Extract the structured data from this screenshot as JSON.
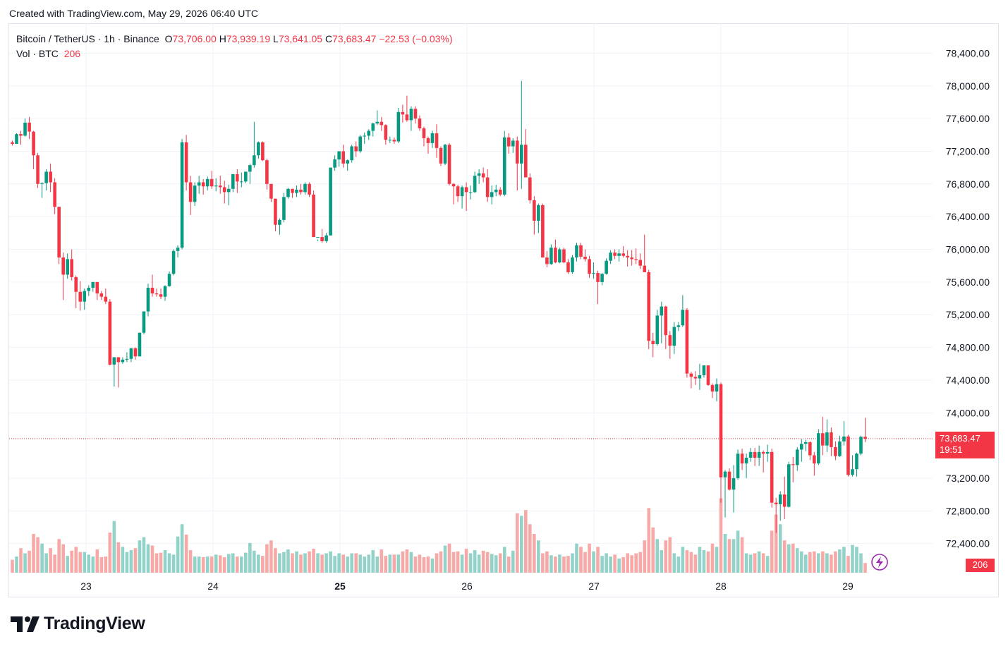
{
  "header": {
    "created": "Created with TradingView.com, May 29, 2026 06:40 UTC"
  },
  "legend": {
    "symbol": "Bitcoin / TetherUS · 1h · Binance",
    "o_label": "O",
    "o_value": "73,706.00",
    "h_label": "H",
    "h_value": "73,939.19",
    "l_label": "L",
    "l_value": "73,641.05",
    "c_label": "C",
    "c_value": "73,683.47",
    "change": "−22.53 (−0.03%)",
    "vol_label": "Vol · BTC",
    "vol_value": "206"
  },
  "price_tag": {
    "price": "73,683.47",
    "countdown": "19:51"
  },
  "vol_tag": "206",
  "brand": "TradingView",
  "colors": {
    "up": "#089981",
    "down": "#f23645",
    "up_vol": "#92d2c9",
    "down_vol": "#f7a9a7",
    "grid": "#f0f3fa"
  },
  "chart_data": {
    "type": "candlestick",
    "interval": "1h",
    "ylim": [
      72000,
      78600
    ],
    "y_ticks": [
      "78,400.00",
      "78,000.00",
      "77,600.00",
      "77,200.00",
      "76,800.00",
      "76,400.00",
      "76,000.00",
      "75,600.00",
      "75,200.00",
      "74,800.00",
      "74,400.00",
      "74,000.00",
      "73,200.00",
      "72,800.00",
      "72,400.00"
    ],
    "x_ticks": [
      "23",
      "24",
      "25",
      "26",
      "27",
      "28",
      "29"
    ],
    "last_price": 73683.47,
    "candles": [
      [
        77310,
        77330,
        77270,
        77290,
        20
      ],
      [
        77290,
        77420,
        77290,
        77410,
        25
      ],
      [
        77410,
        77450,
        77280,
        77390,
        38
      ],
      [
        77390,
        77600,
        77380,
        77550,
        30
      ],
      [
        77550,
        77620,
        77350,
        77440,
        34
      ],
      [
        77440,
        77450,
        76980,
        77150,
        60
      ],
      [
        77150,
        77180,
        76750,
        76800,
        55
      ],
      [
        76800,
        76820,
        76630,
        76810,
        45
      ],
      [
        76810,
        76980,
        76720,
        76950,
        30
      ],
      [
        76950,
        77050,
        76700,
        76820,
        38
      ],
      [
        76820,
        76870,
        76430,
        76520,
        28
      ],
      [
        76520,
        76520,
        75820,
        75900,
        52
      ],
      [
        75900,
        75960,
        75380,
        75690,
        44
      ],
      [
        75690,
        75950,
        75640,
        75880,
        26
      ],
      [
        75880,
        76000,
        75620,
        75660,
        34
      ],
      [
        75660,
        75680,
        75280,
        75480,
        40
      ],
      [
        75480,
        75610,
        75250,
        75360,
        32
      ],
      [
        75360,
        75520,
        75260,
        75490,
        32
      ],
      [
        75490,
        75560,
        75430,
        75530,
        28
      ],
      [
        75530,
        75600,
        75480,
        75600,
        25
      ],
      [
        75600,
        75600,
        75380,
        75460,
        36
      ],
      [
        75460,
        75490,
        75380,
        75420,
        24
      ],
      [
        75420,
        75520,
        75330,
        75360,
        25
      ],
      [
        75360,
        75390,
        74580,
        74590,
        62
      ],
      [
        74590,
        74680,
        74320,
        74680,
        80
      ],
      [
        74680,
        74680,
        74310,
        74620,
        47
      ],
      [
        74620,
        74680,
        74600,
        74650,
        40
      ],
      [
        74650,
        74740,
        74620,
        74660,
        32
      ],
      [
        74660,
        74790,
        74620,
        74790,
        35
      ],
      [
        74790,
        74800,
        74650,
        74690,
        38
      ],
      [
        74690,
        74980,
        74690,
        74980,
        50
      ],
      [
        74980,
        75240,
        74960,
        75240,
        55
      ],
      [
        75240,
        75580,
        75180,
        75530,
        44
      ],
      [
        75530,
        75690,
        75420,
        75460,
        42
      ],
      [
        75460,
        75520,
        75420,
        75450,
        30
      ],
      [
        75450,
        75520,
        75390,
        75420,
        31
      ],
      [
        75420,
        75560,
        75370,
        75550,
        35
      ],
      [
        75550,
        75730,
        75540,
        75700,
        30
      ],
      [
        75700,
        76000,
        75680,
        75980,
        28
      ],
      [
        75980,
        76050,
        75900,
        76020,
        56
      ],
      [
        76020,
        77350,
        76000,
        77310,
        75
      ],
      [
        77310,
        77400,
        76720,
        76820,
        59
      ],
      [
        76820,
        76900,
        76420,
        76580,
        35
      ],
      [
        76580,
        76820,
        76530,
        76780,
        25
      ],
      [
        76780,
        76900,
        76680,
        76820,
        25
      ],
      [
        76820,
        76860,
        76670,
        76770,
        24
      ],
      [
        76770,
        76890,
        76720,
        76860,
        25
      ],
      [
        76860,
        76960,
        76740,
        76770,
        25
      ],
      [
        76770,
        76870,
        76710,
        76780,
        28
      ],
      [
        76780,
        76900,
        76680,
        76760,
        27
      ],
      [
        76760,
        76840,
        76560,
        76700,
        24
      ],
      [
        76700,
        76790,
        76540,
        76740,
        29
      ],
      [
        76740,
        76920,
        76700,
        76920,
        30
      ],
      [
        76920,
        76980,
        76690,
        76830,
        25
      ],
      [
        76830,
        76940,
        76760,
        76830,
        25
      ],
      [
        76830,
        76950,
        76810,
        76950,
        31
      ],
      [
        76950,
        77050,
        76800,
        77030,
        46
      ],
      [
        77030,
        77560,
        77000,
        77150,
        34
      ],
      [
        77150,
        77320,
        77110,
        77310,
        28
      ],
      [
        77310,
        77320,
        77080,
        77090,
        26
      ],
      [
        77090,
        77110,
        76730,
        76800,
        44
      ],
      [
        76800,
        76800,
        76580,
        76620,
        50
      ],
      [
        76620,
        76620,
        76220,
        76300,
        38
      ],
      [
        76300,
        76380,
        76180,
        76360,
        30
      ],
      [
        76360,
        76690,
        76330,
        76640,
        32
      ],
      [
        76640,
        76750,
        76620,
        76740,
        36
      ],
      [
        76740,
        76740,
        76630,
        76690,
        30
      ],
      [
        76690,
        76780,
        76640,
        76730,
        33
      ],
      [
        76730,
        76800,
        76670,
        76700,
        28
      ],
      [
        76700,
        76820,
        76670,
        76800,
        30
      ],
      [
        76800,
        76820,
        76640,
        76670,
        33
      ],
      [
        76670,
        76720,
        76150,
        76150,
        37
      ],
      [
        76150,
        76120,
        76100,
        76150,
        30
      ],
      [
        76150,
        76250,
        76080,
        76100,
        28
      ],
      [
        76100,
        76200,
        76080,
        76170,
        30
      ],
      [
        76170,
        77000,
        76170,
        77000,
        33
      ],
      [
        77000,
        77150,
        76960,
        77100,
        26
      ],
      [
        77100,
        77200,
        77010,
        77200,
        30
      ],
      [
        77200,
        77280,
        77000,
        77050,
        28
      ],
      [
        77050,
        77100,
        76960,
        77090,
        25
      ],
      [
        77090,
        77280,
        77060,
        77260,
        30
      ],
      [
        77260,
        77320,
        77130,
        77200,
        30
      ],
      [
        77200,
        77400,
        77180,
        77380,
        28
      ],
      [
        77380,
        77430,
        77290,
        77390,
        25
      ],
      [
        77390,
        77470,
        77340,
        77450,
        28
      ],
      [
        77450,
        77550,
        77380,
        77540,
        35
      ],
      [
        77540,
        77700,
        77520,
        77560,
        25
      ],
      [
        77560,
        77620,
        77450,
        77520,
        36
      ],
      [
        77520,
        77530,
        77280,
        77340,
        26
      ],
      [
        77340,
        77380,
        77300,
        77340,
        28
      ],
      [
        77340,
        77370,
        77290,
        77320,
        28
      ],
      [
        77320,
        77730,
        77300,
        77680,
        28
      ],
      [
        77680,
        77770,
        77550,
        77650,
        33
      ],
      [
        77650,
        77880,
        77560,
        77580,
        36
      ],
      [
        77580,
        77750,
        77450,
        77720,
        32
      ],
      [
        77720,
        77750,
        77540,
        77600,
        25
      ],
      [
        77600,
        77640,
        77450,
        77480,
        28
      ],
      [
        77480,
        77500,
        77260,
        77360,
        24
      ],
      [
        77360,
        77380,
        77170,
        77300,
        25
      ],
      [
        77300,
        77450,
        77240,
        77420,
        22
      ],
      [
        77420,
        77530,
        77120,
        77240,
        30
      ],
      [
        77240,
        77260,
        77020,
        77050,
        33
      ],
      [
        77050,
        77290,
        77030,
        77280,
        42
      ],
      [
        77280,
        77300,
        76780,
        76800,
        45
      ],
      [
        76800,
        76810,
        76550,
        76770,
        32
      ],
      [
        76770,
        76790,
        76580,
        76650,
        33
      ],
      [
        76650,
        76780,
        76500,
        76760,
        28
      ],
      [
        76760,
        76820,
        76470,
        76700,
        37
      ],
      [
        76700,
        76780,
        76610,
        76700,
        30
      ],
      [
        76700,
        76950,
        76690,
        76900,
        35
      ],
      [
        76900,
        76980,
        76800,
        76930,
        28
      ],
      [
        76930,
        77000,
        76820,
        76880,
        34
      ],
      [
        76880,
        76980,
        76580,
        76640,
        32
      ],
      [
        76640,
        76780,
        76550,
        76700,
        29
      ],
      [
        76700,
        76790,
        76650,
        76730,
        27
      ],
      [
        76730,
        76760,
        76650,
        76670,
        30
      ],
      [
        76670,
        77450,
        76650,
        77370,
        40
      ],
      [
        77370,
        77420,
        77170,
        77260,
        25
      ],
      [
        77260,
        77360,
        77180,
        77330,
        34
      ],
      [
        77330,
        77380,
        76720,
        77050,
        92
      ],
      [
        77050,
        78060,
        76740,
        77280,
        88
      ],
      [
        77280,
        77470,
        76920,
        76880,
        97
      ],
      [
        76880,
        76930,
        76560,
        76600,
        75
      ],
      [
        76600,
        76650,
        76180,
        76350,
        60
      ],
      [
        76350,
        76560,
        76200,
        76540,
        50
      ],
      [
        76540,
        76560,
        75900,
        75900,
        30
      ],
      [
        75900,
        75980,
        75780,
        75820,
        33
      ],
      [
        75820,
        76060,
        75810,
        76020,
        27
      ],
      [
        76020,
        76120,
        75830,
        75840,
        25
      ],
      [
        75840,
        76020,
        75830,
        76000,
        28
      ],
      [
        76000,
        76020,
        75830,
        75840,
        25
      ],
      [
        75840,
        75880,
        75700,
        75720,
        26
      ],
      [
        75720,
        75930,
        75700,
        75900,
        30
      ],
      [
        75900,
        76080,
        75850,
        76050,
        45
      ],
      [
        76050,
        76080,
        75880,
        75910,
        40
      ],
      [
        75910,
        76000,
        75850,
        75880,
        32
      ],
      [
        75880,
        75920,
        75650,
        75700,
        45
      ],
      [
        75700,
        75840,
        75640,
        75710,
        33
      ],
      [
        75710,
        75740,
        75330,
        75600,
        40
      ],
      [
        75600,
        75710,
        75560,
        75700,
        26
      ],
      [
        75700,
        75890,
        75690,
        75860,
        30
      ],
      [
        75860,
        75990,
        75820,
        75960,
        25
      ],
      [
        75960,
        76000,
        75880,
        75920,
        28
      ],
      [
        75920,
        76000,
        75850,
        75950,
        22
      ],
      [
        75950,
        76040,
        75900,
        75920,
        24
      ],
      [
        75920,
        75990,
        75790,
        75900,
        30
      ],
      [
        75900,
        75990,
        75800,
        75880,
        27
      ],
      [
        75880,
        76010,
        75820,
        75870,
        30
      ],
      [
        75870,
        75950,
        75760,
        75800,
        32
      ],
      [
        75800,
        76180,
        75720,
        75720,
        50
      ],
      [
        75720,
        75750,
        74780,
        74880,
        100
      ],
      [
        74880,
        74980,
        74680,
        74840,
        70
      ],
      [
        74840,
        75260,
        74820,
        75190,
        52
      ],
      [
        75190,
        75360,
        74850,
        75300,
        35
      ],
      [
        75300,
        75310,
        74780,
        74950,
        50
      ],
      [
        74950,
        75000,
        74660,
        74820,
        55
      ],
      [
        74820,
        75110,
        74720,
        75050,
        30
      ],
      [
        75050,
        75110,
        75000,
        75070,
        25
      ],
      [
        75070,
        75440,
        75050,
        75260,
        40
      ],
      [
        75260,
        75280,
        74430,
        74480,
        35
      ],
      [
        74480,
        74500,
        74300,
        74440,
        32
      ],
      [
        74440,
        74510,
        74340,
        74420,
        28
      ],
      [
        74420,
        74600,
        74280,
        74460,
        40
      ],
      [
        74460,
        74580,
        74430,
        74580,
        35
      ],
      [
        74580,
        74580,
        74330,
        74340,
        33
      ],
      [
        74340,
        74360,
        74180,
        74260,
        45
      ],
      [
        74260,
        74420,
        74140,
        74350,
        40
      ],
      [
        74350,
        74370,
        72900,
        73210,
        115
      ],
      [
        73210,
        73300,
        72720,
        73280,
        60
      ],
      [
        73280,
        73320,
        73050,
        73060,
        52
      ],
      [
        73060,
        73360,
        72780,
        73200,
        52
      ],
      [
        73200,
        73550,
        73180,
        73500,
        65
      ],
      [
        73500,
        73560,
        73300,
        73380,
        55
      ],
      [
        73380,
        73500,
        73200,
        73450,
        30
      ],
      [
        73450,
        73570,
        73400,
        73520,
        28
      ],
      [
        73520,
        73570,
        73350,
        73450,
        30
      ],
      [
        73450,
        73600,
        73350,
        73520,
        33
      ],
      [
        73520,
        73540,
        73270,
        73500,
        30
      ],
      [
        73500,
        73610,
        73400,
        73520,
        26
      ],
      [
        73520,
        73560,
        72840,
        72900,
        65
      ],
      [
        72900,
        72960,
        72530,
        72880,
        90
      ],
      [
        72880,
        73040,
        72680,
        73000,
        75
      ],
      [
        73000,
        73220,
        72700,
        72850,
        50
      ],
      [
        72850,
        73400,
        72840,
        73370,
        44
      ],
      [
        73370,
        73460,
        73150,
        73360,
        45
      ],
      [
        73360,
        73580,
        73290,
        73550,
        38
      ],
      [
        73550,
        73680,
        73400,
        73620,
        33
      ],
      [
        73620,
        73670,
        73530,
        73640,
        28
      ],
      [
        73640,
        73650,
        73420,
        73480,
        32
      ],
      [
        73480,
        73520,
        73230,
        73380,
        33
      ],
      [
        73380,
        73800,
        73360,
        73750,
        30
      ],
      [
        73750,
        73950,
        73480,
        73600,
        33
      ],
      [
        73600,
        73920,
        73520,
        73760,
        30
      ],
      [
        73760,
        73820,
        73470,
        73580,
        28
      ],
      [
        73580,
        73650,
        73420,
        73470,
        33
      ],
      [
        73470,
        73720,
        73460,
        73650,
        36
      ],
      [
        73650,
        73900,
        73600,
        73710,
        40
      ],
      [
        73710,
        73730,
        73220,
        73240,
        26
      ],
      [
        73240,
        73480,
        73220,
        73310,
        43
      ],
      [
        73310,
        73510,
        73220,
        73500,
        40
      ],
      [
        73500,
        73720,
        73480,
        73706,
        30
      ],
      [
        73706,
        73939,
        73641,
        73683,
        15
      ]
    ]
  }
}
